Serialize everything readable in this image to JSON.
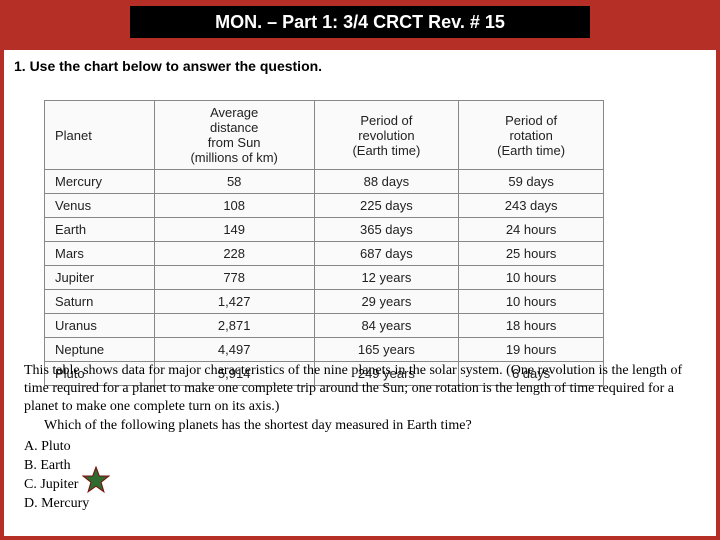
{
  "title": "MON. – Part 1:  3/4  CRCT  Rev. # 15",
  "instruction": "1.  Use the chart below to answer the question.",
  "table": {
    "headers": [
      "Planet",
      "Average\ndistance\nfrom Sun\n(millions of km)",
      "Period of\nrevolution\n(Earth time)",
      "Period of\nrotation\n(Earth time)"
    ],
    "rows": [
      [
        "Mercury",
        "58",
        "88 days",
        "59 days"
      ],
      [
        "Venus",
        "108",
        "225 days",
        "243 days"
      ],
      [
        "Earth",
        "149",
        "365 days",
        "24 hours"
      ],
      [
        "Mars",
        "228",
        "687 days",
        "25 hours"
      ],
      [
        "Jupiter",
        "778",
        "12 years",
        "10 hours"
      ],
      [
        "Saturn",
        "1,427",
        "29 years",
        "10 hours"
      ],
      [
        "Uranus",
        "2,871",
        "84 years",
        "18 hours"
      ],
      [
        "Neptune",
        "4,497",
        "165 years",
        "19 hours"
      ],
      [
        "Pluto",
        "5,914",
        "249 years",
        "6 days"
      ]
    ],
    "col_widths": [
      "110px",
      "160px",
      "145px",
      "145px"
    ],
    "border_color": "#888",
    "bg_color": "#fafafa",
    "font_size": 13
  },
  "caption": "This table shows data for major characteristics of the nine planets in the solar system. (One revolution is the length of time required for a planet to make one complete trip around the Sun; one rotation is the length of time required for a planet to make one complete turn on its axis.)",
  "question": "Which of the following planets has the shortest day measured in Earth time?",
  "choices": [
    {
      "label": "A. Pluto"
    },
    {
      "label": "B. Earth"
    },
    {
      "label": "C. Jupiter"
    },
    {
      "label": "D. Mercury"
    }
  ],
  "correct_index": 2,
  "colors": {
    "slide_bg": "#b52f27",
    "title_bg": "#000000",
    "title_fg": "#ffffff",
    "content_bg": "#ffffff",
    "star_fill": "#2e6b2e",
    "star_stroke": "#7a1414"
  }
}
